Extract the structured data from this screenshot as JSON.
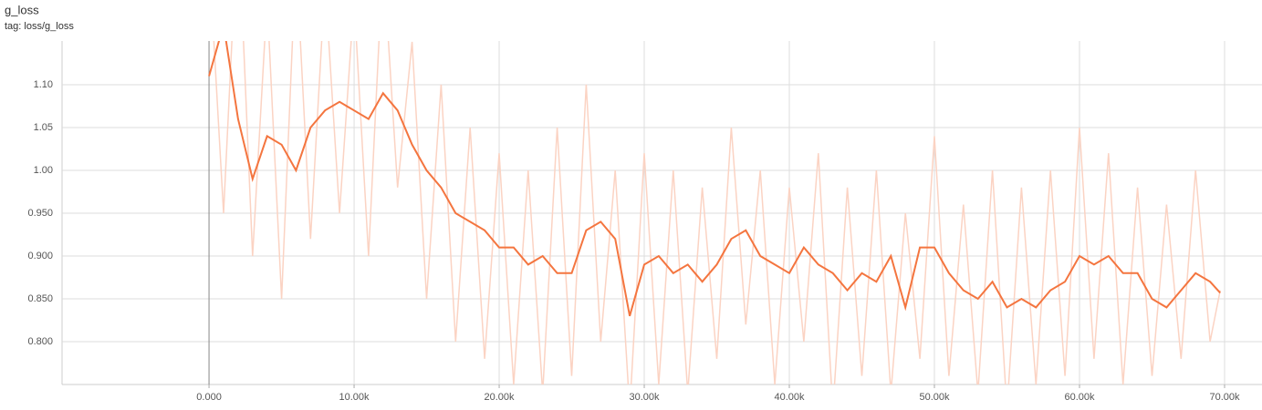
{
  "chart_data": {
    "type": "line",
    "title": "g_loss",
    "subtitle": "tag: loss/g_loss",
    "x": [
      0,
      1000,
      2000,
      3000,
      4000,
      5000,
      6000,
      7000,
      8000,
      9000,
      10000,
      11000,
      12000,
      13000,
      14000,
      15000,
      16000,
      17000,
      18000,
      19000,
      20000,
      21000,
      22000,
      23000,
      24000,
      25000,
      26000,
      27000,
      28000,
      29000,
      30000,
      31000,
      32000,
      33000,
      34000,
      35000,
      36000,
      37000,
      38000,
      39000,
      40000,
      41000,
      42000,
      43000,
      44000,
      45000,
      46000,
      47000,
      48000,
      49000,
      50000,
      51000,
      52000,
      53000,
      54000,
      55000,
      56000,
      57000,
      58000,
      59000,
      60000,
      61000,
      62000,
      63000,
      64000,
      65000,
      66000,
      67000,
      68000,
      69000,
      69700
    ],
    "series": [
      {
        "color": "#fbd3c3",
        "values": [
          1.25,
          0.95,
          1.3,
          0.9,
          1.2,
          0.85,
          1.25,
          0.92,
          1.22,
          0.95,
          1.2,
          0.9,
          1.25,
          0.98,
          1.15,
          0.85,
          1.1,
          0.8,
          1.05,
          0.78,
          1.02,
          0.75,
          1.0,
          0.74,
          1.05,
          0.76,
          1.1,
          0.8,
          1.0,
          0.72,
          1.02,
          0.75,
          1.0,
          0.74,
          0.98,
          0.78,
          1.05,
          0.82,
          1.0,
          0.75,
          0.98,
          0.8,
          1.02,
          0.72,
          0.98,
          0.76,
          1.0,
          0.74,
          0.95,
          0.78,
          1.04,
          0.76,
          0.96,
          0.74,
          1.0,
          0.72,
          0.98,
          0.75,
          1.0,
          0.76,
          1.05,
          0.78,
          1.02,
          0.75,
          0.98,
          0.76,
          0.96,
          0.78,
          1.0,
          0.8,
          0.86
        ]
      },
      {
        "color": "#f4753f",
        "values": [
          1.11,
          1.17,
          1.06,
          0.99,
          1.04,
          1.03,
          1.0,
          1.05,
          1.07,
          1.08,
          1.07,
          1.06,
          1.09,
          1.07,
          1.03,
          1.0,
          0.98,
          0.95,
          0.94,
          0.93,
          0.91,
          0.91,
          0.89,
          0.9,
          0.88,
          0.88,
          0.93,
          0.94,
          0.92,
          0.83,
          0.89,
          0.9,
          0.88,
          0.89,
          0.87,
          0.89,
          0.92,
          0.93,
          0.9,
          0.89,
          0.88,
          0.91,
          0.89,
          0.88,
          0.86,
          0.88,
          0.87,
          0.9,
          0.84,
          0.91,
          0.91,
          0.88,
          0.86,
          0.85,
          0.87,
          0.84,
          0.85,
          0.84,
          0.86,
          0.87,
          0.9,
          0.89,
          0.9,
          0.88,
          0.88,
          0.85,
          0.84,
          0.86,
          0.88,
          0.87,
          0.857
        ]
      }
    ],
    "xlim": [
      -10130,
      72580
    ],
    "ylim": [
      0.75,
      1.151
    ],
    "xticks": [
      {
        "value": 0,
        "label": "0.000"
      },
      {
        "value": 10000,
        "label": "10.00k"
      },
      {
        "value": 20000,
        "label": "20.00k"
      },
      {
        "value": 30000,
        "label": "30.00k"
      },
      {
        "value": 40000,
        "label": "40.00k"
      },
      {
        "value": 50000,
        "label": "50.00k"
      },
      {
        "value": 60000,
        "label": "60.00k"
      },
      {
        "value": 70000,
        "label": "70.00k"
      }
    ],
    "yticks": [
      {
        "value": 0.8,
        "label": "0.800"
      },
      {
        "value": 0.85,
        "label": "0.850"
      },
      {
        "value": 0.9,
        "label": "0.900"
      },
      {
        "value": 0.95,
        "label": "0.950"
      },
      {
        "value": 1.0,
        "label": "1.00"
      },
      {
        "value": 1.05,
        "label": "1.05"
      },
      {
        "value": 1.1,
        "label": "1.10"
      }
    ],
    "grid": true
  }
}
